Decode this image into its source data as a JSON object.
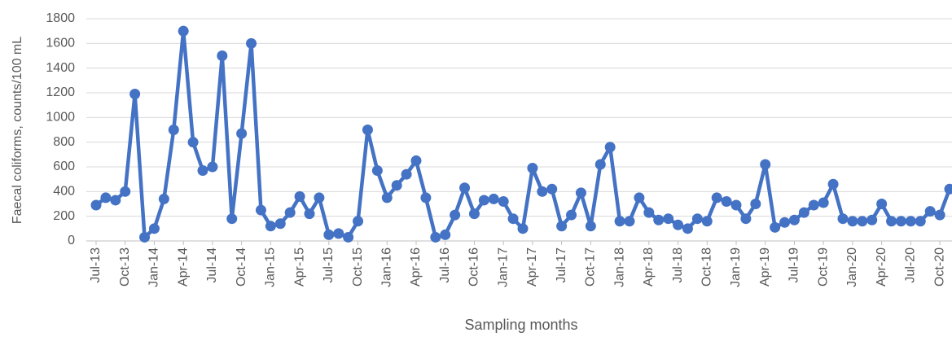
{
  "chart_data": {
    "type": "line",
    "y_label": "Faecal coliforms, counts/100 mL",
    "x_label": "Sampling months",
    "categories": [
      "Jul-13",
      null,
      null,
      "Oct-13",
      null,
      null,
      "Jan-14",
      null,
      null,
      "Apr-14",
      null,
      null,
      "Jul-14",
      null,
      null,
      "Oct-14",
      null,
      null,
      "Jan-15",
      null,
      null,
      "Apr-15",
      null,
      null,
      "Jul-15",
      null,
      null,
      "Oct-15",
      null,
      null,
      "Jan-16",
      null,
      null,
      "Apr-16",
      null,
      null,
      "Jul-16",
      null,
      null,
      "Oct-16",
      null,
      null,
      "Jan-17",
      null,
      null,
      "Apr-17",
      null,
      null,
      "Jul-17",
      null,
      null,
      "Oct-17",
      null,
      null,
      "Jan-18",
      null,
      null,
      "Apr-18",
      null,
      null,
      "Jul-18",
      null,
      null,
      "Oct-18",
      null,
      null,
      "Jan-19",
      null,
      null,
      "Apr-19",
      null,
      null,
      "Jul-19",
      null,
      null,
      "Oct-19",
      null,
      null,
      "Jan-20",
      null,
      null,
      "Apr-20",
      null,
      null,
      "Jul-20",
      null,
      null,
      "Oct-20",
      null
    ],
    "values": [
      290,
      350,
      330,
      400,
      1190,
      30,
      100,
      340,
      900,
      1700,
      800,
      570,
      600,
      1500,
      180,
      870,
      1600,
      250,
      120,
      140,
      230,
      360,
      220,
      350,
      50,
      60,
      30,
      160,
      900,
      570,
      350,
      450,
      540,
      650,
      350,
      30,
      50,
      210,
      430,
      220,
      330,
      340,
      320,
      180,
      100,
      590,
      400,
      420,
      120,
      210,
      390,
      120,
      620,
      760,
      160,
      160,
      350,
      230,
      170,
      180,
      130,
      100,
      180,
      160,
      350,
      320,
      290,
      180,
      300,
      620,
      110,
      150,
      170,
      230,
      290,
      310,
      460,
      180,
      160,
      160,
      170,
      300,
      160,
      160,
      160,
      160,
      240,
      210,
      420
    ],
    "color": "#4472c4",
    "ylim": [
      0,
      1800
    ],
    "yticks": [
      0,
      200,
      400,
      600,
      800,
      1000,
      1200,
      1400,
      1600,
      1800
    ],
    "grid": true
  }
}
